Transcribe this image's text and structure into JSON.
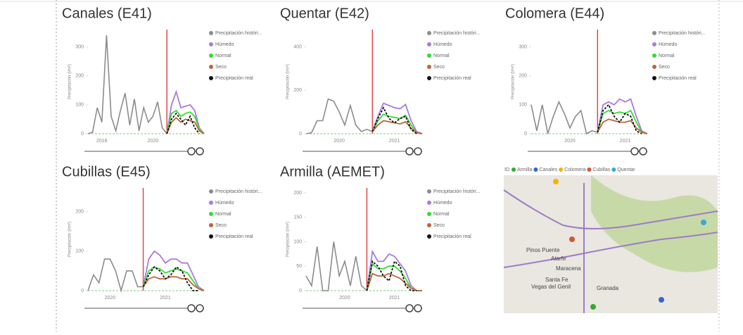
{
  "chart_data": [
    {
      "type": "line",
      "title": "Canales (E41)",
      "y_label": "Precipitación (l/m²)",
      "categories": [
        null,
        null,
        null,
        "2018",
        null,
        null,
        null,
        null,
        null,
        null,
        null,
        null,
        null,
        null,
        "2020",
        null,
        null,
        null,
        null,
        null,
        null,
        null,
        null,
        null,
        null,
        null
      ],
      "ylim": [
        0,
        360
      ],
      "yticks": [
        0,
        100,
        200,
        300
      ],
      "series": [
        {
          "name": "Precipitación históri...",
          "color": "#8c8c8c",
          "values": [
            0,
            5,
            90,
            40,
            340,
            60,
            10,
            80,
            140,
            30,
            120,
            10,
            90,
            40,
            60,
            110,
            20,
            0,
            null,
            null,
            null,
            null,
            null,
            null,
            null,
            null
          ]
        },
        {
          "name": "Húmedo",
          "color": "#a87be0",
          "values": [
            null,
            null,
            null,
            null,
            null,
            null,
            null,
            null,
            null,
            null,
            null,
            null,
            null,
            null,
            null,
            null,
            null,
            0,
            100,
            145,
            90,
            95,
            100,
            80,
            20,
            0
          ]
        },
        {
          "name": "Normal",
          "color": "#33dd33",
          "values": [
            null,
            null,
            null,
            null,
            null,
            null,
            null,
            null,
            null,
            null,
            null,
            null,
            null,
            null,
            null,
            null,
            null,
            0,
            70,
            80,
            60,
            70,
            75,
            60,
            15,
            0
          ]
        },
        {
          "name": "Seco",
          "color": "#c0643a",
          "values": [
            null,
            null,
            null,
            null,
            null,
            null,
            null,
            null,
            null,
            null,
            null,
            null,
            null,
            null,
            null,
            null,
            null,
            0,
            40,
            55,
            40,
            50,
            45,
            40,
            10,
            0
          ]
        },
        {
          "name": "Precipitación real",
          "color": "#111111",
          "values": [
            null,
            null,
            null,
            null,
            null,
            null,
            null,
            null,
            null,
            null,
            null,
            null,
            null,
            null,
            null,
            null,
            null,
            0,
            50,
            70,
            50,
            30,
            60,
            20,
            0,
            null
          ]
        }
      ]
    },
    {
      "type": "line",
      "title": "Quentar (E42)",
      "y_label": "Precipitación (l/m²)",
      "categories": [
        null,
        null,
        null,
        null,
        null,
        null,
        "2020",
        null,
        null,
        null,
        null,
        null,
        null,
        null,
        null,
        null,
        "2021",
        null,
        null,
        null,
        null,
        null
      ],
      "ylim": [
        0,
        480
      ],
      "yticks": [
        0,
        200,
        400
      ],
      "series": [
        {
          "name": "Precipitación históri...",
          "color": "#8c8c8c",
          "values": [
            0,
            5,
            60,
            60,
            160,
            150,
            100,
            40,
            130,
            40,
            10,
            20,
            10,
            null,
            null,
            null,
            null,
            null,
            null,
            null,
            null,
            null
          ]
        },
        {
          "name": "Húmedo",
          "color": "#a87be0",
          "values": [
            null,
            null,
            null,
            null,
            null,
            null,
            null,
            null,
            null,
            null,
            null,
            null,
            10,
            80,
            140,
            130,
            120,
            115,
            135,
            60,
            10,
            0
          ]
        },
        {
          "name": "Normal",
          "color": "#33dd33",
          "values": [
            null,
            null,
            null,
            null,
            null,
            null,
            null,
            null,
            null,
            null,
            null,
            null,
            10,
            60,
            90,
            80,
            75,
            70,
            85,
            40,
            5,
            0
          ]
        },
        {
          "name": "Seco",
          "color": "#c0643a",
          "values": [
            null,
            null,
            null,
            null,
            null,
            null,
            null,
            null,
            null,
            null,
            null,
            null,
            10,
            40,
            60,
            55,
            50,
            45,
            55,
            25,
            5,
            0
          ]
        },
        {
          "name": "Precipitación real",
          "color": "#111111",
          "values": [
            null,
            null,
            null,
            null,
            null,
            null,
            null,
            null,
            null,
            null,
            null,
            null,
            10,
            70,
            120,
            70,
            50,
            70,
            80,
            20,
            0,
            null
          ]
        }
      ]
    },
    {
      "type": "line",
      "title": "Colomera (E44)",
      "y_label": "Precipitación (l/m²)",
      "categories": [
        null,
        null,
        null,
        null,
        null,
        null,
        null,
        "2020",
        null,
        null,
        null,
        null,
        null,
        null,
        null,
        null,
        null,
        "2021",
        null,
        null,
        null,
        null
      ],
      "ylim": [
        0,
        360
      ],
      "yticks": [
        0,
        100,
        200,
        300
      ],
      "series": [
        {
          "name": "Precipitación históri...",
          "color": "#8c8c8c",
          "values": [
            100,
            10,
            100,
            0,
            60,
            110,
            70,
            20,
            60,
            80,
            0,
            10,
            5,
            null,
            null,
            null,
            null,
            null,
            null,
            null,
            null,
            null
          ]
        },
        {
          "name": "Húmedo",
          "color": "#a87be0",
          "values": [
            null,
            null,
            null,
            null,
            null,
            null,
            null,
            null,
            null,
            null,
            null,
            null,
            5,
            100,
            110,
            100,
            120,
            110,
            120,
            60,
            10,
            0
          ]
        },
        {
          "name": "Normal",
          "color": "#33dd33",
          "values": [
            null,
            null,
            null,
            null,
            null,
            null,
            null,
            null,
            null,
            null,
            null,
            null,
            5,
            70,
            80,
            70,
            75,
            70,
            80,
            40,
            5,
            0
          ]
        },
        {
          "name": "Seco",
          "color": "#c0643a",
          "values": [
            null,
            null,
            null,
            null,
            null,
            null,
            null,
            null,
            null,
            null,
            null,
            null,
            5,
            40,
            50,
            45,
            40,
            40,
            45,
            20,
            5,
            0
          ]
        },
        {
          "name": "Precipitación real",
          "color": "#111111",
          "values": [
            null,
            null,
            null,
            null,
            null,
            null,
            null,
            null,
            null,
            null,
            null,
            null,
            5,
            80,
            100,
            60,
            40,
            70,
            60,
            10,
            0,
            null
          ]
        }
      ]
    },
    {
      "type": "line",
      "title": "Cubillas (E45)",
      "y_label": "Precipitación (l/m²)",
      "categories": [
        null,
        null,
        null,
        null,
        "2020",
        null,
        null,
        null,
        null,
        null,
        null,
        null,
        null,
        null,
        "2021",
        null,
        null,
        null,
        null,
        null,
        null,
        null
      ],
      "ylim": [
        0,
        260
      ],
      "yticks": [
        0,
        100,
        200
      ],
      "series": [
        {
          "name": "Precipitación históri...",
          "color": "#8c8c8c",
          "values": [
            0,
            40,
            20,
            80,
            80,
            50,
            0,
            50,
            50,
            10,
            10,
            null,
            null,
            null,
            null,
            null,
            null,
            null,
            null,
            null,
            null,
            null
          ]
        },
        {
          "name": "Húmedo",
          "color": "#a87be0",
          "values": [
            null,
            null,
            null,
            null,
            null,
            null,
            null,
            null,
            null,
            null,
            10,
            80,
            100,
            90,
            70,
            80,
            80,
            70,
            70,
            40,
            10,
            0
          ]
        },
        {
          "name": "Normal",
          "color": "#33dd33",
          "values": [
            null,
            null,
            null,
            null,
            null,
            null,
            null,
            null,
            null,
            null,
            10,
            50,
            60,
            55,
            45,
            50,
            55,
            50,
            45,
            25,
            5,
            0
          ]
        },
        {
          "name": "Seco",
          "color": "#c0643a",
          "values": [
            null,
            null,
            null,
            null,
            null,
            null,
            null,
            null,
            null,
            null,
            10,
            30,
            35,
            30,
            30,
            35,
            35,
            30,
            30,
            15,
            5,
            0
          ]
        },
        {
          "name": "Precipitación real",
          "color": "#111111",
          "values": [
            null,
            null,
            null,
            null,
            null,
            null,
            null,
            null,
            null,
            null,
            10,
            40,
            60,
            50,
            30,
            40,
            60,
            50,
            20,
            0,
            0,
            null
          ]
        }
      ]
    },
    {
      "type": "line",
      "title": "Armilla (AEMET)",
      "y_label": "Precipitación (l/m²)",
      "categories": [
        null,
        null,
        null,
        null,
        null,
        null,
        null,
        "2020",
        null,
        null,
        null,
        null,
        null,
        null,
        null,
        null,
        "2021",
        null,
        null,
        null,
        null,
        null
      ],
      "ylim": [
        0,
        210
      ],
      "yticks": [
        0,
        50,
        100,
        150,
        200
      ],
      "series": [
        {
          "name": "Precipitación históri...",
          "color": "#8c8c8c",
          "values": [
            30,
            10,
            90,
            0,
            0,
            100,
            30,
            60,
            10,
            70,
            10,
            0,
            null,
            null,
            null,
            null,
            null,
            null,
            null,
            null,
            null,
            null
          ]
        },
        {
          "name": "Húmedo",
          "color": "#a87be0",
          "values": [
            null,
            null,
            null,
            null,
            null,
            null,
            null,
            null,
            null,
            null,
            null,
            0,
            80,
            60,
            60,
            75,
            70,
            55,
            40,
            10,
            0,
            0
          ]
        },
        {
          "name": "Normal",
          "color": "#33dd33",
          "values": [
            null,
            null,
            null,
            null,
            null,
            null,
            null,
            null,
            null,
            null,
            null,
            0,
            55,
            45,
            45,
            50,
            50,
            40,
            25,
            5,
            0,
            0
          ]
        },
        {
          "name": "Seco",
          "color": "#c0643a",
          "values": [
            null,
            null,
            null,
            null,
            null,
            null,
            null,
            null,
            null,
            null,
            null,
            0,
            35,
            30,
            30,
            35,
            30,
            25,
            15,
            5,
            0,
            0
          ]
        },
        {
          "name": "Precipitación real",
          "color": "#111111",
          "values": [
            null,
            null,
            null,
            null,
            null,
            null,
            null,
            null,
            null,
            null,
            null,
            0,
            60,
            50,
            30,
            20,
            60,
            50,
            10,
            0,
            0,
            null
          ]
        }
      ]
    }
  ],
  "map": {
    "legend_title": "ID",
    "legend": [
      {
        "name": "Armilla",
        "color": "#33aa33"
      },
      {
        "name": "Canales",
        "color": "#3366cc"
      },
      {
        "name": "Colomera",
        "color": "#f0b400"
      },
      {
        "name": "Cubillas",
        "color": "#d2553a"
      },
      {
        "name": "Quentar",
        "color": "#3aa8dd"
      }
    ],
    "places": [
      "Pinos Puente",
      "Atarfe",
      "Maracena",
      "Santa Fe",
      "Vegas del Genil",
      "Granada"
    ]
  }
}
